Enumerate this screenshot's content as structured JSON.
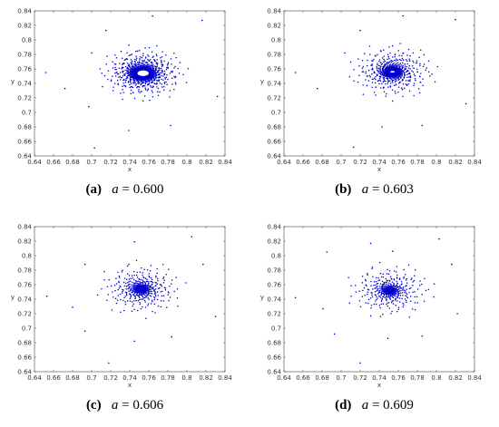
{
  "chart_data": [
    {
      "type": "scatter",
      "panel_label": "(a)",
      "param_name": "a",
      "param_value": "0.600",
      "xlabel": "x",
      "ylabel": "y",
      "xlim": [
        0.64,
        0.84
      ],
      "ylim": [
        0.64,
        0.84
      ],
      "xticks": [
        "0.64",
        "0.66",
        "0.68",
        "0.7",
        "0.72",
        "0.74",
        "0.76",
        "0.78",
        "0.8",
        "0.82",
        "0.84"
      ],
      "yticks": [
        "0.64",
        "0.66",
        "0.68",
        "0.7",
        "0.72",
        "0.74",
        "0.76",
        "0.78",
        "0.8",
        "0.82",
        "0.84"
      ],
      "center": [
        0.754,
        0.754
      ],
      "limit_cycle": {
        "rx": 0.008,
        "ry": 0.006
      },
      "spiral_arms": 40,
      "outer_points": [
        [
          0.652,
          0.755
        ],
        [
          0.672,
          0.733
        ],
        [
          0.703,
          0.651
        ],
        [
          0.739,
          0.675
        ],
        [
          0.726,
          0.755
        ],
        [
          0.715,
          0.813
        ],
        [
          0.764,
          0.833
        ],
        [
          0.816,
          0.827
        ],
        [
          0.832,
          0.722
        ],
        [
          0.783,
          0.682
        ],
        [
          0.7,
          0.782
        ],
        [
          0.697,
          0.708
        ]
      ],
      "color": "#0000cc"
    },
    {
      "type": "scatter",
      "panel_label": "(b)",
      "param_name": "a",
      "param_value": "0.603",
      "xlabel": "x",
      "ylabel": "y",
      "xlim": [
        0.64,
        0.84
      ],
      "ylim": [
        0.64,
        0.84
      ],
      "xticks": [
        "0.64",
        "0.66",
        "0.68",
        "0.7",
        "0.72",
        "0.74",
        "0.76",
        "0.78",
        "0.8",
        "0.82",
        "0.84"
      ],
      "yticks": [
        "0.64",
        "0.66",
        "0.68",
        "0.7",
        "0.72",
        "0.74",
        "0.76",
        "0.78",
        "0.8",
        "0.82",
        "0.84"
      ],
      "center": [
        0.754,
        0.756
      ],
      "limit_cycle": {
        "rx": 0.004,
        "ry": 0.003
      },
      "spiral_arms": 36,
      "outer_points": [
        [
          0.652,
          0.755
        ],
        [
          0.675,
          0.733
        ],
        [
          0.713,
          0.652
        ],
        [
          0.743,
          0.68
        ],
        [
          0.72,
          0.813
        ],
        [
          0.765,
          0.833
        ],
        [
          0.82,
          0.828
        ],
        [
          0.831,
          0.712
        ],
        [
          0.785,
          0.682
        ],
        [
          0.704,
          0.782
        ]
      ],
      "color": "#0000cc"
    },
    {
      "type": "scatter",
      "panel_label": "(c)",
      "param_name": "a",
      "param_value": "0.606",
      "xlabel": "x",
      "ylabel": "y",
      "xlim": [
        0.64,
        0.84
      ],
      "ylim": [
        0.64,
        0.84
      ],
      "xticks": [
        "0.64",
        "0.66",
        "0.68",
        "0.7",
        "0.72",
        "0.74",
        "0.76",
        "0.78",
        "0.8",
        "0.82",
        "0.84"
      ],
      "yticks": [
        "0.64",
        "0.66",
        "0.68",
        "0.7",
        "0.72",
        "0.74",
        "0.76",
        "0.78",
        "0.8",
        "0.82",
        "0.84"
      ],
      "center": [
        0.752,
        0.754
      ],
      "limit_cycle": {
        "rx": 0.0,
        "ry": 0.0
      },
      "spiral_arms": 30,
      "outer_points": [
        [
          0.653,
          0.744
        ],
        [
          0.68,
          0.729
        ],
        [
          0.718,
          0.652
        ],
        [
          0.745,
          0.682
        ],
        [
          0.693,
          0.788
        ],
        [
          0.745,
          0.819
        ],
        [
          0.805,
          0.826
        ],
        [
          0.817,
          0.788
        ],
        [
          0.83,
          0.716
        ],
        [
          0.784,
          0.688
        ],
        [
          0.693,
          0.696
        ]
      ],
      "color": "#0000cc"
    },
    {
      "type": "scatter",
      "panel_label": "(d)",
      "param_name": "a",
      "param_value": "0.609",
      "xlabel": "x",
      "ylabel": "y",
      "xlim": [
        0.64,
        0.84
      ],
      "ylim": [
        0.64,
        0.84
      ],
      "xticks": [
        "0.64",
        "0.66",
        "0.68",
        "0.7",
        "0.72",
        "0.74",
        "0.76",
        "0.78",
        "0.8",
        "0.82",
        "0.84"
      ],
      "yticks": [
        "0.64",
        "0.66",
        "0.68",
        "0.7",
        "0.72",
        "0.74",
        "0.76",
        "0.78",
        "0.8",
        "0.82",
        "0.84"
      ],
      "center": [
        0.751,
        0.752
      ],
      "limit_cycle": {
        "rx": 0.0,
        "ry": 0.0
      },
      "spiral_arms": 28,
      "outer_points": [
        [
          0.652,
          0.742
        ],
        [
          0.681,
          0.727
        ],
        [
          0.72,
          0.652
        ],
        [
          0.749,
          0.686
        ],
        [
          0.685,
          0.805
        ],
        [
          0.731,
          0.817
        ],
        [
          0.803,
          0.823
        ],
        [
          0.816,
          0.788
        ],
        [
          0.822,
          0.72
        ],
        [
          0.785,
          0.689
        ],
        [
          0.693,
          0.692
        ],
        [
          0.754,
          0.806
        ]
      ],
      "color": "#0000cc"
    }
  ]
}
